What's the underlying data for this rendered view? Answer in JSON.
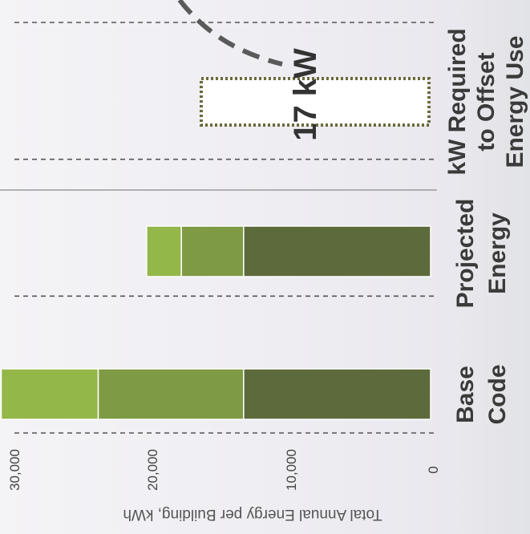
{
  "chart_data": {
    "type": "bar",
    "stacked": true,
    "orientation": "horizontal",
    "categories": [
      "Base Code",
      "Projected Energy"
    ],
    "series": [
      {
        "values": [
          13500,
          13500
        ],
        "color": "#5d6b3c"
      },
      {
        "values": [
          10500,
          4500
        ],
        "color": "#7f9a45"
      },
      {
        "values": [
          7000,
          2500
        ],
        "color": "#94b74a"
      }
    ],
    "ylabel": "Total Annual Energy per Building, kWh",
    "ylim": [
      0,
      31000
    ],
    "yticks": [
      {
        "value": 0,
        "label": "0"
      },
      {
        "value": 10000,
        "label": "10,000"
      },
      {
        "value": 20000,
        "label": "20,000"
      },
      {
        "value": 30000,
        "label": "30,000"
      }
    ],
    "grid": true,
    "third_category": {
      "label": "kW Required to Offset Energy Use",
      "value_label": "17 kW",
      "style": "dotted-outline"
    }
  },
  "category_labels": [
    {
      "line1": "Base",
      "line2": "Code"
    },
    {
      "line1": "Projected",
      "line2": "Energy"
    },
    {
      "line1": "kW Required",
      "line2": "to Offset",
      "line3": "Energy Use"
    }
  ],
  "colors": {
    "grid": "#555555",
    "divider": "#8a8a8a",
    "dash": "#5a5a5a"
  }
}
